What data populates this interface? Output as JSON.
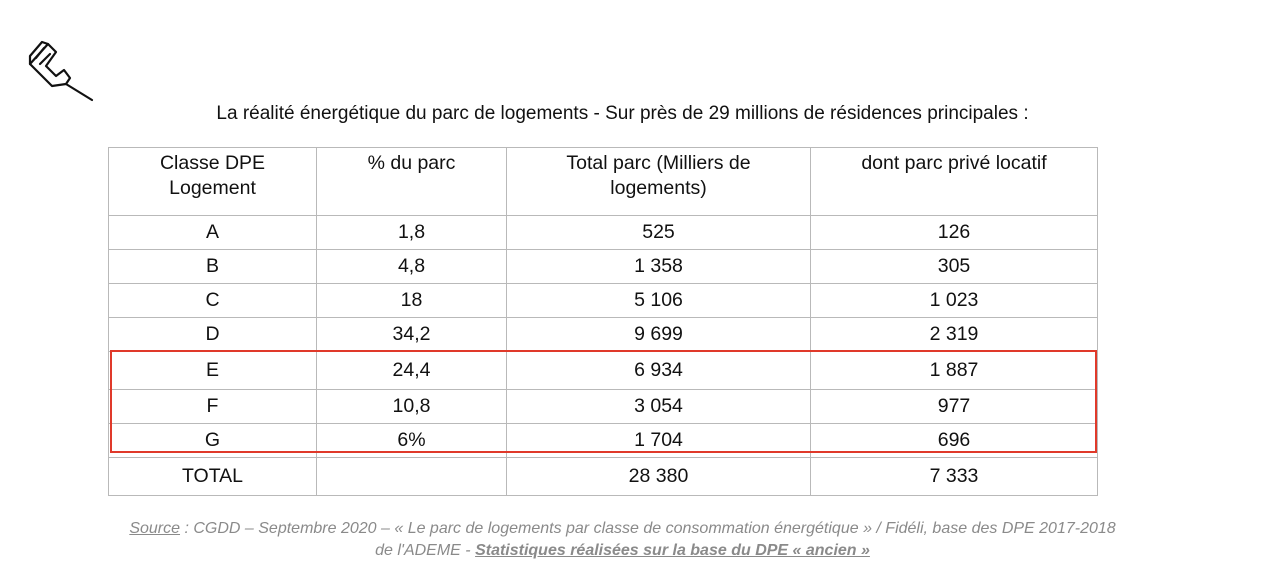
{
  "title": "La réalité énergétique du parc de logements - Sur près de 29 millions de résidences principales :",
  "table": {
    "headers": [
      [
        "Classe DPE",
        "Logement"
      ],
      [
        "% du parc"
      ],
      [
        "Total parc (Milliers de",
        "logements)"
      ],
      [
        "dont parc  privé locatif"
      ]
    ],
    "rows": [
      [
        "A",
        "1,8",
        "525",
        "126"
      ],
      [
        "B",
        "4,8",
        "1 358",
        "305"
      ],
      [
        "C",
        "18",
        "5 106",
        "1 023"
      ],
      [
        "D",
        "34,2",
        "9 699",
        "2 319"
      ],
      [
        "E",
        "24,4",
        "6 934",
        "1 887"
      ],
      [
        "F",
        "10,8",
        "3 054",
        "977"
      ],
      [
        "G",
        "6%",
        "1 704",
        "696"
      ],
      [
        "TOTAL",
        "",
        "28 380",
        "7 333"
      ]
    ]
  },
  "highlight_color": "#e0392a",
  "source": {
    "label": "Source",
    "line1": " : CGDD – Septembre 2020 – « Le parc de logements par classe de consommation énergétique » / Fidéli, base des DPE 2017-2018",
    "line2_prefix": "de l'ADEME - ",
    "line2_bold": "Statistiques réalisées sur la base du DPE « ancien »"
  }
}
